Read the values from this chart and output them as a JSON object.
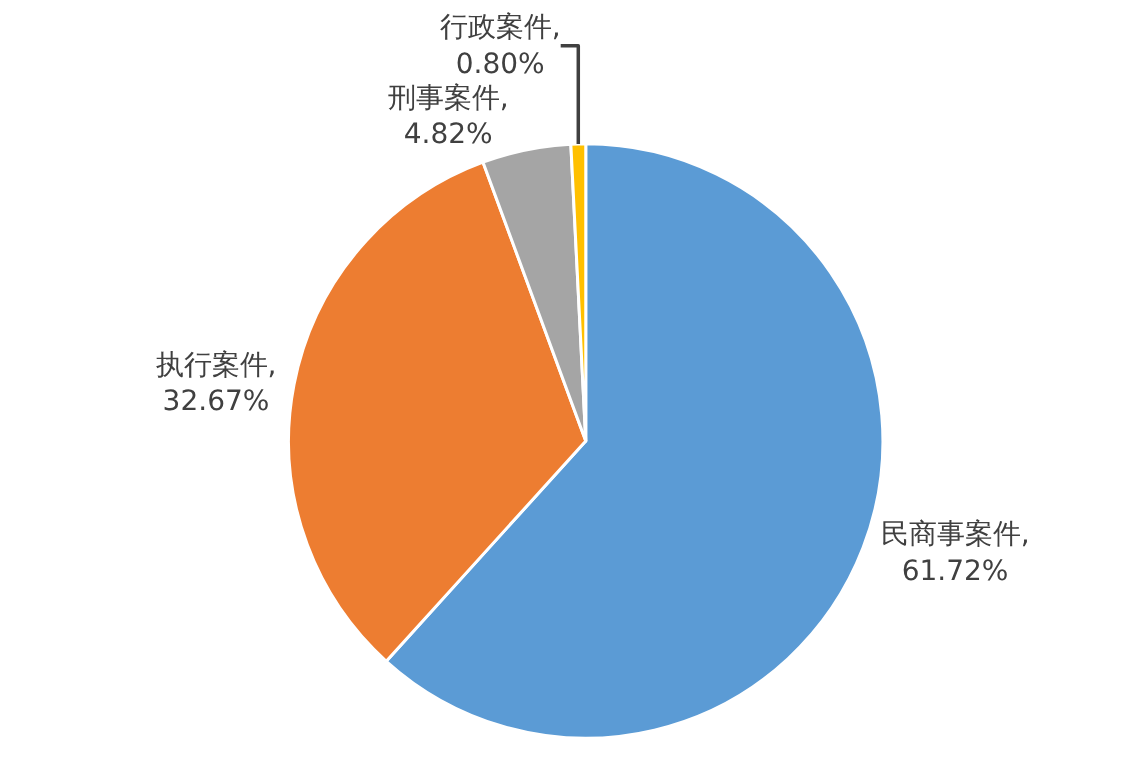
{
  "chart_data": {
    "type": "pie",
    "categories": [
      "民商事案件",
      "执行案件",
      "刑事案件",
      "行政案件"
    ],
    "values": [
      61.72,
      32.67,
      4.82,
      0.8
    ],
    "colors": [
      "#5b9bd5",
      "#ed7d31",
      "#a5a5a5",
      "#ffc000"
    ],
    "value_labels": [
      ",\n61.72%",
      ",\n32.67%",
      ",\n4.82%",
      ",\n0.80%"
    ],
    "legend": false
  }
}
